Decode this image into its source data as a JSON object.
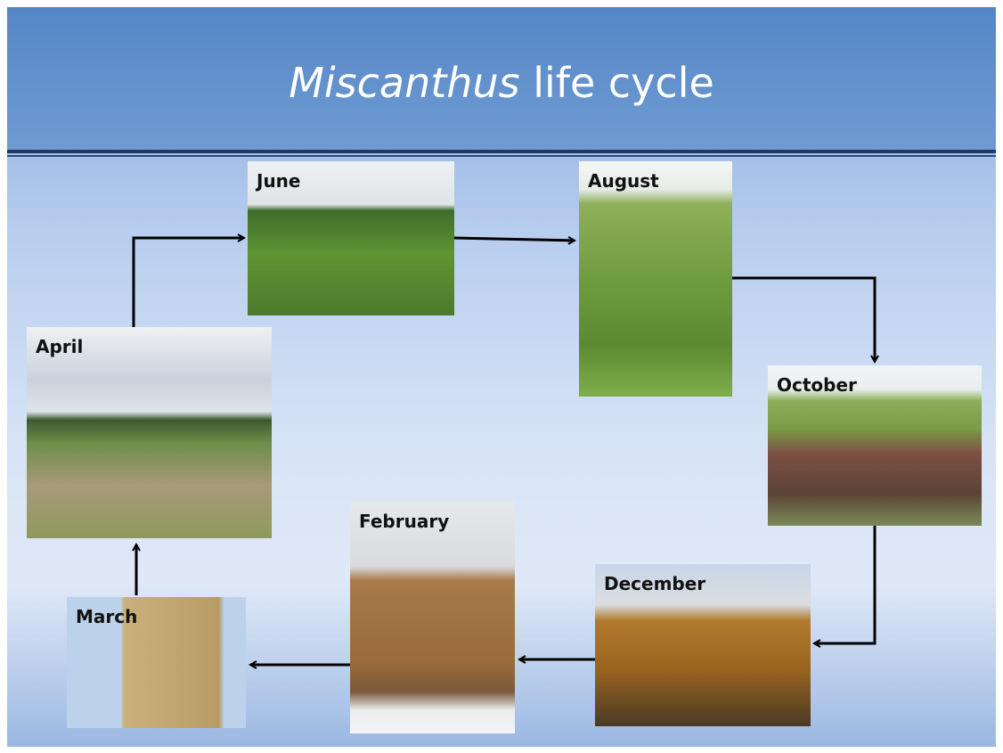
{
  "title": {
    "italic": "Miscanthus",
    "rest": "life cycle"
  },
  "nodes": [
    {
      "label": "June"
    },
    {
      "label": "August"
    },
    {
      "label": "October"
    },
    {
      "label": "December"
    },
    {
      "label": "February"
    },
    {
      "label": "March"
    },
    {
      "label": "April"
    }
  ]
}
